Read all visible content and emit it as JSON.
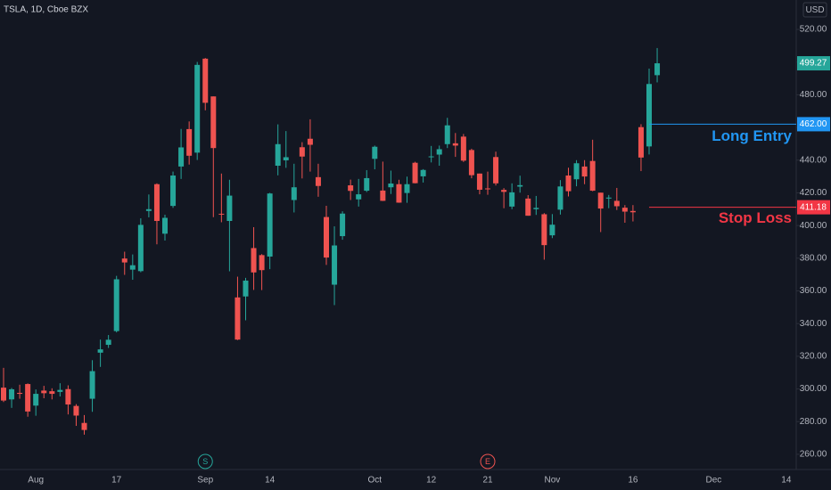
{
  "chart_data": {
    "type": "candlestick",
    "title": "TSLA, 1D, Cboe BZX",
    "currency": "USD",
    "categories": [
      null,
      null,
      null,
      null,
      "Aug",
      null,
      null,
      null,
      null,
      null,
      null,
      null,
      null,
      null,
      "17",
      null,
      null,
      null,
      null,
      null,
      null,
      null,
      null,
      null,
      null,
      "Sep",
      null,
      null,
      null,
      null,
      null,
      null,
      null,
      "14",
      null,
      null,
      null,
      null,
      null,
      null,
      null,
      null,
      null,
      null,
      null,
      null,
      "Oct",
      null,
      null,
      null,
      null,
      null,
      null,
      "12",
      null,
      null,
      null,
      null,
      null,
      null,
      "21",
      null,
      null,
      null,
      null,
      null,
      null,
      null,
      "Nov",
      null,
      null,
      null,
      null,
      null,
      null,
      null,
      null,
      null,
      "16",
      null,
      null,
      null,
      null,
      null,
      null,
      null,
      null,
      null,
      "Dec",
      null,
      null,
      null,
      null,
      null,
      null,
      null,
      null,
      "14"
    ],
    "open": [
      300.8,
      293.6,
      297.6,
      303,
      289.8,
      299,
      298.6,
      298.2,
      299.9,
      289.6,
      279.2,
      294,
      322.2,
      327,
      335.4,
      379.8,
      373,
      372.1,
      408.9,
      425.3,
      395,
      412,
      436.1,
      459,
      444.6,
      502.1,
      479,
      407.2,
      402.8,
      356,
      356.6,
      386.2,
      381.9,
      381,
      436.6,
      439.9,
      415.6,
      447.9,
      453.1,
      429.6,
      405.2,
      363.8,
      393.5,
      424.6,
      416,
      421.3,
      440.8,
      421.4,
      423.4,
      425.3,
      419.9,
      438.4,
      430.1,
      442,
      443.4,
      449.8,
      450.3,
      454.4,
      446.2,
      431.8,
      422.7,
      441.9,
      421.8,
      411.6,
      423.8,
      416.5,
      410,
      406.9,
      394,
      409.7,
      430.6,
      428.3,
      436.1,
      439.5,
      420.1,
      416.5,
      415.1,
      410.9,
      408.9,
      460.2,
      448.4,
      492,
      null,
      null,
      null,
      null,
      null,
      null,
      null,
      null,
      null,
      null,
      null,
      null,
      null,
      null,
      null,
      null
    ],
    "high": [
      312.9,
      300.6,
      302.6,
      303.4,
      299.7,
      301.9,
      300.4,
      303.5,
      302.2,
      290.7,
      284,
      317.6,
      330.2,
      333,
      369.2,
      384,
      382.3,
      404.4,
      419,
      425.8,
      406.6,
      433,
      459.1,
      463.7,
      500.1,
      502.5,
      479,
      431.8,
      428,
      368.7,
      368,
      399,
      382.5,
      420,
      461.9,
      457.8,
      437.8,
      451,
      465,
      437.8,
      412.1,
      399.5,
      408.7,
      428.1,
      428.5,
      433.9,
      448.9,
      439.1,
      433.6,
      428,
      429.9,
      439,
      434.5,
      448.7,
      448.9,
      465.9,
      456.6,
      456,
      447,
      431.8,
      433,
      445.2,
      422.9,
      425.8,
      430.5,
      418.6,
      418.1,
      407.6,
      407,
      427.8,
      435.4,
      440,
      440,
      452.5,
      420.1,
      418.7,
      423,
      412.5,
      412.5,
      462,
      496,
      508.6,
      null,
      null,
      null,
      null,
      null,
      null,
      null,
      null,
      null,
      null,
      null,
      null,
      null,
      null,
      null,
      null
    ],
    "low": [
      292,
      288.4,
      294,
      283,
      283.6,
      294.3,
      293.6,
      295.4,
      284.4,
      277.4,
      272,
      286,
      313.5,
      325.1,
      334.6,
      369.8,
      366.8,
      371.4,
      405,
      388.5,
      390.8,
      410.8,
      428.5,
      437.3,
      440.1,
      470.5,
      405.1,
      402,
      372,
      329.9,
      342,
      360.6,
      360.5,
      373.3,
      430.7,
      435.3,
      408,
      428.8,
      433,
      417.6,
      375.9,
      351.3,
      391.3,
      415.6,
      411.6,
      420.5,
      434.4,
      415,
      419.3,
      413.9,
      413.9,
      425.8,
      426.3,
      438.6,
      436.6,
      447.4,
      442,
      438.9,
      428.9,
      419.1,
      418.8,
      424.5,
      410.6,
      410,
      420.1,
      406,
      406.5,
      379.1,
      392.3,
      406.7,
      417.8,
      424,
      425.3,
      421,
      396,
      410.6,
      409.5,
      401.7,
      402.5,
      433.3,
      443.5,
      487.6,
      null,
      null,
      null,
      null,
      null,
      null,
      null,
      null,
      null,
      null,
      null,
      null,
      null,
      null,
      null,
      null
    ],
    "close": [
      292.9,
      299.8,
      297,
      286.2,
      297,
      297.4,
      297,
      299.4,
      290.5,
      283.7,
      274.9,
      310.9,
      324.2,
      330.1,
      367.1,
      377.4,
      375.7,
      400.4,
      410,
      402.8,
      404.7,
      430.6,
      447.8,
      442.7,
      498.3,
      475.1,
      447.4,
      407,
      418.3,
      330.2,
      366.3,
      371.3,
      372.7,
      419.6,
      449.8,
      441.8,
      423.4,
      442.2,
      449.4,
      424.2,
      380.4,
      387.8,
      407.3,
      421.2,
      419.1,
      429,
      448.2,
      415.1,
      425.7,
      414,
      425.3,
      425.9,
      434,
      442.3,
      446.7,
      461.3,
      448.9,
      439.7,
      430.8,
      421.9,
      422.6,
      425.8,
      420.6,
      420.3,
      424.7,
      406,
      410.8,
      388,
      400.5,
      423.9,
      421,
      438.1,
      430,
      421.3,
      410.4,
      417.1,
      411.8,
      408.5,
      408.1,
      441.6,
      486.6,
      499.27,
      null,
      null,
      null,
      null,
      null,
      null,
      null,
      null,
      null,
      null,
      null,
      null,
      null,
      null,
      null,
      null
    ],
    "up_color": "#26a69a",
    "down_color": "#ef5350",
    "ylim": [
      250.7,
      538
    ],
    "yticks": [
      {
        "value": 260,
        "label": "260.00"
      },
      {
        "value": 280,
        "label": "280.00"
      },
      {
        "value": 300,
        "label": "300.00"
      },
      {
        "value": 320,
        "label": "320.00"
      },
      {
        "value": 340,
        "label": "340.00"
      },
      {
        "value": 360,
        "label": "360.00"
      },
      {
        "value": 380,
        "label": "380.00"
      },
      {
        "value": 400,
        "label": "400.00"
      },
      {
        "value": 420,
        "label": "420.00"
      },
      {
        "value": 440,
        "label": "440.00"
      },
      {
        "value": 460,
        "label": "460.00"
      },
      {
        "value": 480,
        "label": "480.00"
      },
      {
        "value": 500,
        "label": "500.00"
      },
      {
        "value": 520,
        "label": "520.00"
      }
    ],
    "levels": [
      {
        "name": "Long Entry",
        "value": 462,
        "label": "462.00",
        "color": "#2196f3"
      },
      {
        "name": "Stop Loss",
        "value": 411.18,
        "color": "#f23645"
      }
    ],
    "events": [
      {
        "label": "S",
        "category": "Sep",
        "color": "#26a69a"
      },
      {
        "label": "E",
        "category": "21",
        "color": "#ef5350"
      }
    ]
  }
}
